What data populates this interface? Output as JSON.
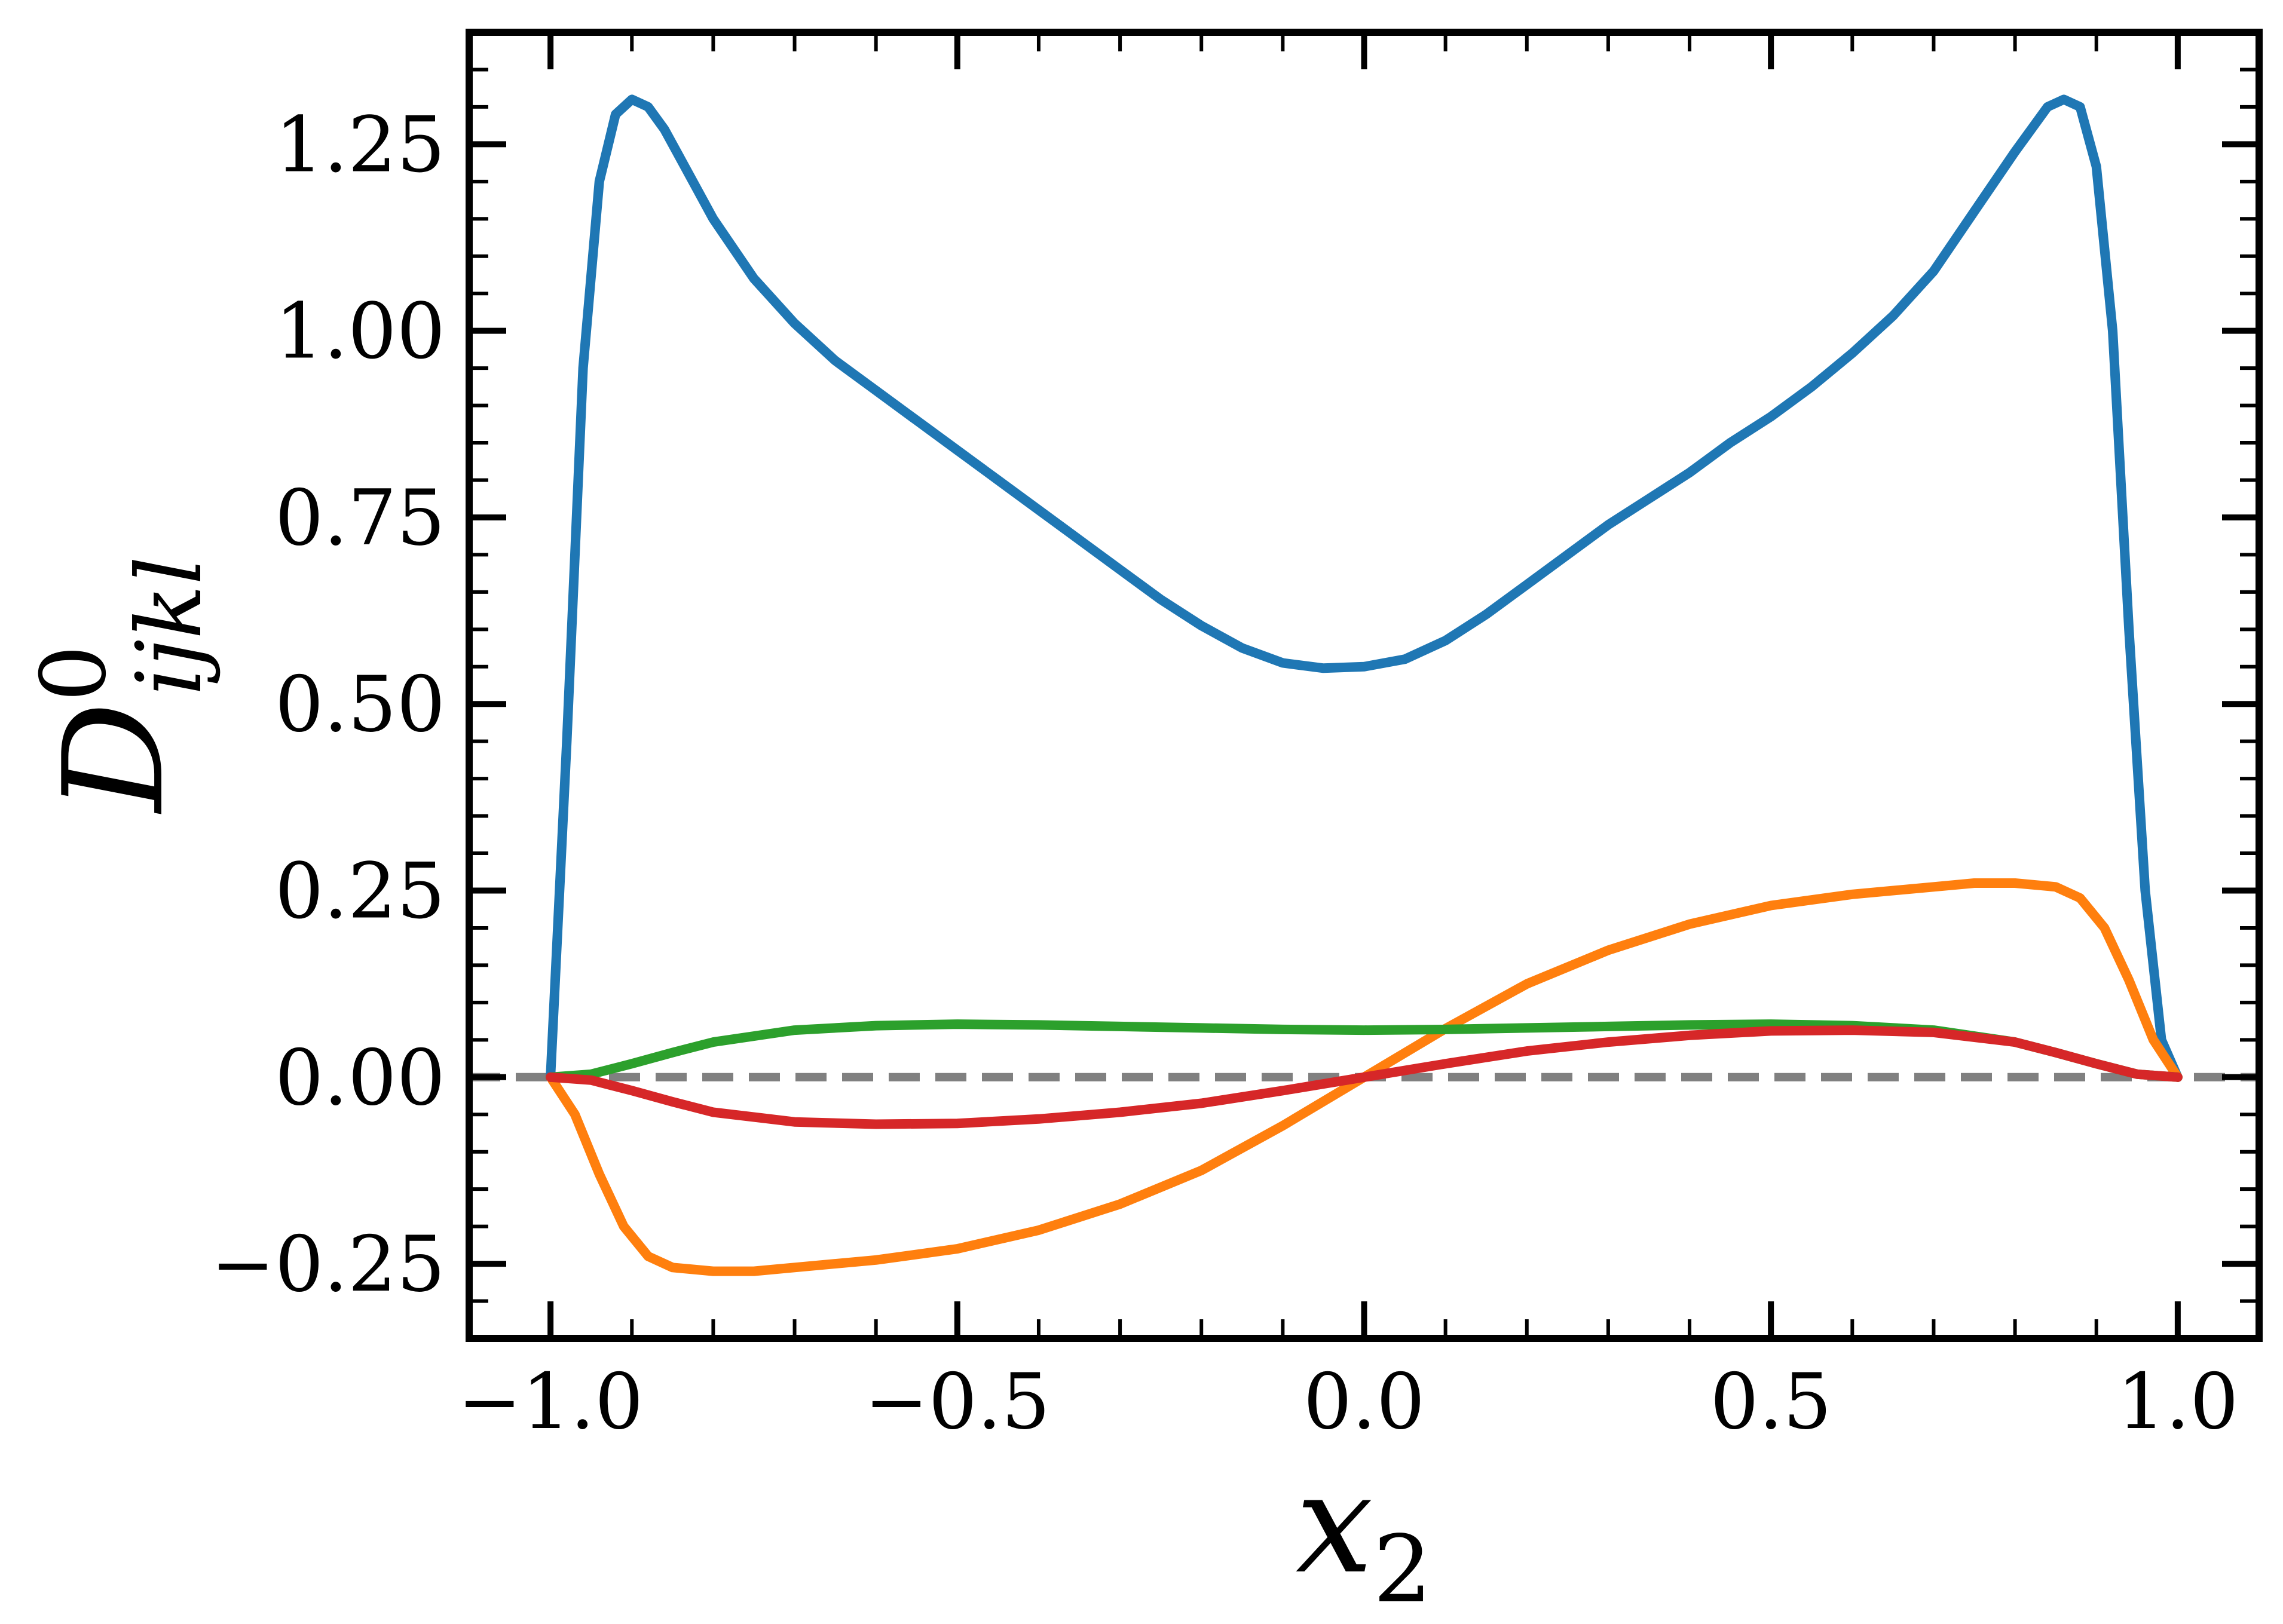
{
  "chart_data": {
    "type": "line",
    "title": "",
    "xlabel": "x",
    "xlabel_sub": "2",
    "ylabel": "D",
    "ylabel_sup": "0",
    "ylabel_sub": "ijkl",
    "xlim": [
      -1.1,
      1.1
    ],
    "ylim": [
      -0.35,
      1.4
    ],
    "xticks": [
      -1.0,
      -0.5,
      0.0,
      0.5,
      1.0
    ],
    "xtick_labels": [
      "−1.0",
      "−0.5",
      "0.0",
      "0.5",
      "1.0"
    ],
    "yticks": [
      -0.25,
      0.0,
      0.25,
      0.5,
      0.75,
      1.0,
      1.25
    ],
    "ytick_labels": [
      "−0.25",
      "0.00",
      "0.25",
      "0.50",
      "0.75",
      "1.00",
      "1.25"
    ],
    "grid": false,
    "legend": "none",
    "reference_line": {
      "y": 0.0,
      "style": "dashed",
      "color": "#808080"
    },
    "series": [
      {
        "color": "#1f77b4",
        "x": [
          -1.0,
          -0.98,
          -0.96,
          -0.94,
          -0.92,
          -0.9,
          -0.88,
          -0.86,
          -0.84,
          -0.82,
          -0.8,
          -0.75,
          -0.7,
          -0.65,
          -0.6,
          -0.55,
          -0.5,
          -0.45,
          -0.4,
          -0.35,
          -0.3,
          -0.25,
          -0.2,
          -0.15,
          -0.1,
          -0.05,
          0.0,
          0.05,
          0.1,
          0.15,
          0.2,
          0.25,
          0.3,
          0.35,
          0.4,
          0.45,
          0.5,
          0.55,
          0.6,
          0.65,
          0.7,
          0.75,
          0.8,
          0.82,
          0.84,
          0.86,
          0.88,
          0.9,
          0.92,
          0.94,
          0.96,
          0.98,
          1.0
        ],
        "y": [
          0.0,
          0.45,
          0.95,
          1.2,
          1.29,
          1.31,
          1.3,
          1.27,
          1.23,
          1.19,
          1.15,
          1.07,
          1.01,
          0.96,
          0.92,
          0.88,
          0.84,
          0.8,
          0.76,
          0.72,
          0.68,
          0.64,
          0.605,
          0.575,
          0.555,
          0.548,
          0.55,
          0.56,
          0.585,
          0.62,
          0.66,
          0.7,
          0.74,
          0.775,
          0.81,
          0.85,
          0.885,
          0.925,
          0.97,
          1.02,
          1.08,
          1.16,
          1.24,
          1.27,
          1.3,
          1.31,
          1.3,
          1.22,
          1.0,
          0.6,
          0.25,
          0.05,
          0.0
        ]
      },
      {
        "color": "#ff7f0e",
        "x": [
          -1.0,
          -0.97,
          -0.94,
          -0.91,
          -0.88,
          -0.85,
          -0.8,
          -0.75,
          -0.7,
          -0.6,
          -0.5,
          -0.4,
          -0.3,
          -0.2,
          -0.1,
          0.0,
          0.1,
          0.2,
          0.3,
          0.4,
          0.5,
          0.6,
          0.7,
          0.75,
          0.8,
          0.85,
          0.88,
          0.91,
          0.94,
          0.97,
          1.0
        ],
        "y": [
          0.0,
          -0.05,
          -0.13,
          -0.2,
          -0.24,
          -0.255,
          -0.26,
          -0.26,
          -0.255,
          -0.245,
          -0.23,
          -0.205,
          -0.17,
          -0.125,
          -0.065,
          0.0,
          0.065,
          0.125,
          0.17,
          0.205,
          0.23,
          0.245,
          0.255,
          0.26,
          0.26,
          0.255,
          0.24,
          0.2,
          0.13,
          0.05,
          0.0
        ]
      },
      {
        "color": "#2ca02c",
        "x": [
          -1.0,
          -0.95,
          -0.9,
          -0.85,
          -0.8,
          -0.7,
          -0.6,
          -0.5,
          -0.4,
          -0.3,
          -0.2,
          -0.1,
          0.0,
          0.1,
          0.2,
          0.3,
          0.4,
          0.5,
          0.6,
          0.7,
          0.8,
          0.85,
          0.9,
          0.95,
          1.0
        ],
        "y": [
          0.0,
          0.004,
          0.018,
          0.033,
          0.047,
          0.063,
          0.069,
          0.071,
          0.07,
          0.068,
          0.066,
          0.064,
          0.063,
          0.064,
          0.066,
          0.068,
          0.07,
          0.071,
          0.069,
          0.063,
          0.047,
          0.033,
          0.018,
          0.004,
          0.0
        ]
      },
      {
        "color": "#d62728",
        "x": [
          -1.0,
          -0.95,
          -0.9,
          -0.85,
          -0.8,
          -0.7,
          -0.6,
          -0.5,
          -0.4,
          -0.3,
          -0.2,
          -0.1,
          0.0,
          0.1,
          0.2,
          0.3,
          0.4,
          0.5,
          0.6,
          0.7,
          0.8,
          0.85,
          0.9,
          0.95,
          1.0
        ],
        "y": [
          0.0,
          -0.004,
          -0.018,
          -0.033,
          -0.047,
          -0.06,
          -0.063,
          -0.062,
          -0.056,
          -0.047,
          -0.035,
          -0.018,
          0.0,
          0.018,
          0.035,
          0.047,
          0.056,
          0.062,
          0.063,
          0.06,
          0.047,
          0.033,
          0.018,
          0.004,
          0.0
        ]
      }
    ]
  }
}
